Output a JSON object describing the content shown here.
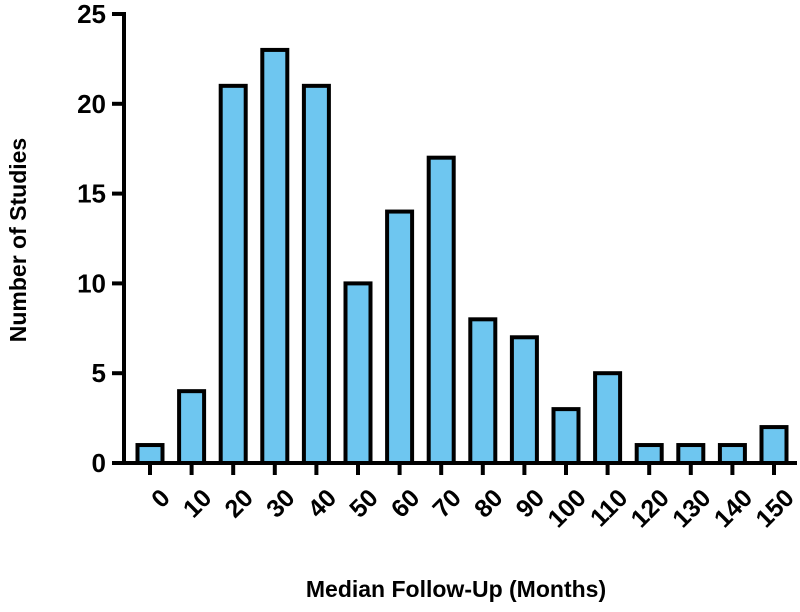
{
  "chart_data": {
    "type": "bar",
    "title": "",
    "xlabel": "Median Follow-Up (Months)",
    "ylabel": "Number of Studies",
    "categories": [
      "0",
      "10",
      "20",
      "30",
      "40",
      "50",
      "60",
      "70",
      "80",
      "90",
      "100",
      "110",
      "120",
      "130",
      "140",
      "150"
    ],
    "values": [
      1,
      4,
      21,
      23,
      21,
      10,
      14,
      17,
      8,
      7,
      3,
      5,
      1,
      1,
      1,
      2
    ],
    "ylim": [
      0,
      25
    ],
    "yticks": [
      "0",
      "5",
      "10",
      "15",
      "20",
      "25"
    ],
    "grid": false,
    "legend": "none",
    "bar_color": "#6EC6F0",
    "edge_color": "#000000"
  }
}
